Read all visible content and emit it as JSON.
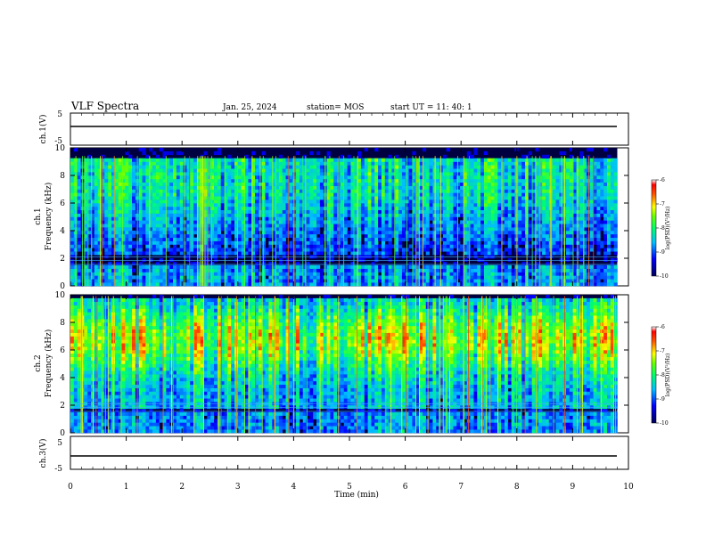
{
  "header": {
    "title": "VLF Spectra",
    "date": "Jan. 25, 2024",
    "station": "station= MOS",
    "start": "start  UT =   11: 40: 1"
  },
  "chart_data": [
    {
      "type": "line",
      "panel": "ch1-waveform",
      "ylabel": "ch.1(V)",
      "ylim": [
        -5,
        5
      ],
      "yticks": [
        "5",
        "-5"
      ],
      "series": [
        {
          "values": [
            0,
            0
          ]
        }
      ],
      "x": [
        0,
        9.8
      ]
    },
    {
      "type": "heatmap",
      "panel": "ch1-spectrogram",
      "ylabel": "ch.1\nFrequency (kHz)",
      "ylim": [
        0,
        10
      ],
      "yticks": [
        "0",
        "2",
        "4",
        "6",
        "8",
        "10"
      ],
      "xlim": [
        0,
        9.8
      ],
      "colorbar": {
        "label": "log(PSD)(V²/Hz)",
        "range": [
          -10,
          -6
        ],
        "ticks": [
          "-6",
          "-7",
          "-8",
          "-9",
          "-10"
        ]
      }
    },
    {
      "type": "heatmap",
      "panel": "ch2-spectrogram",
      "ylabel": "ch.2\nFrequency (kHz)",
      "ylim": [
        0,
        10
      ],
      "yticks": [
        "0",
        "2",
        "4",
        "6",
        "8",
        "10"
      ],
      "xlim": [
        0,
        9.8
      ],
      "colorbar": {
        "label": "log(PSD)(V²/Hz)",
        "range": [
          -10,
          -6
        ],
        "ticks": [
          "-6",
          "-7",
          "-8",
          "-9",
          "-10"
        ]
      }
    },
    {
      "type": "line",
      "panel": "ch3-waveform",
      "ylabel": "ch.3(V)",
      "ylim": [
        -5,
        5
      ],
      "yticks": [
        "5",
        "-5"
      ],
      "series": [
        {
          "values": [
            0,
            0
          ]
        }
      ],
      "x": [
        0,
        9.8
      ]
    }
  ],
  "xaxis": {
    "label": "Time  (min)",
    "ticks": [
      "0",
      "1",
      "2",
      "3",
      "4",
      "5",
      "6",
      "7",
      "8",
      "9",
      "10"
    ],
    "xlim": [
      0,
      10
    ]
  },
  "colors": {
    "bg": "#000080",
    "low": "#0000ff",
    "mid": "#00ff88",
    "high": "#ff0000"
  }
}
